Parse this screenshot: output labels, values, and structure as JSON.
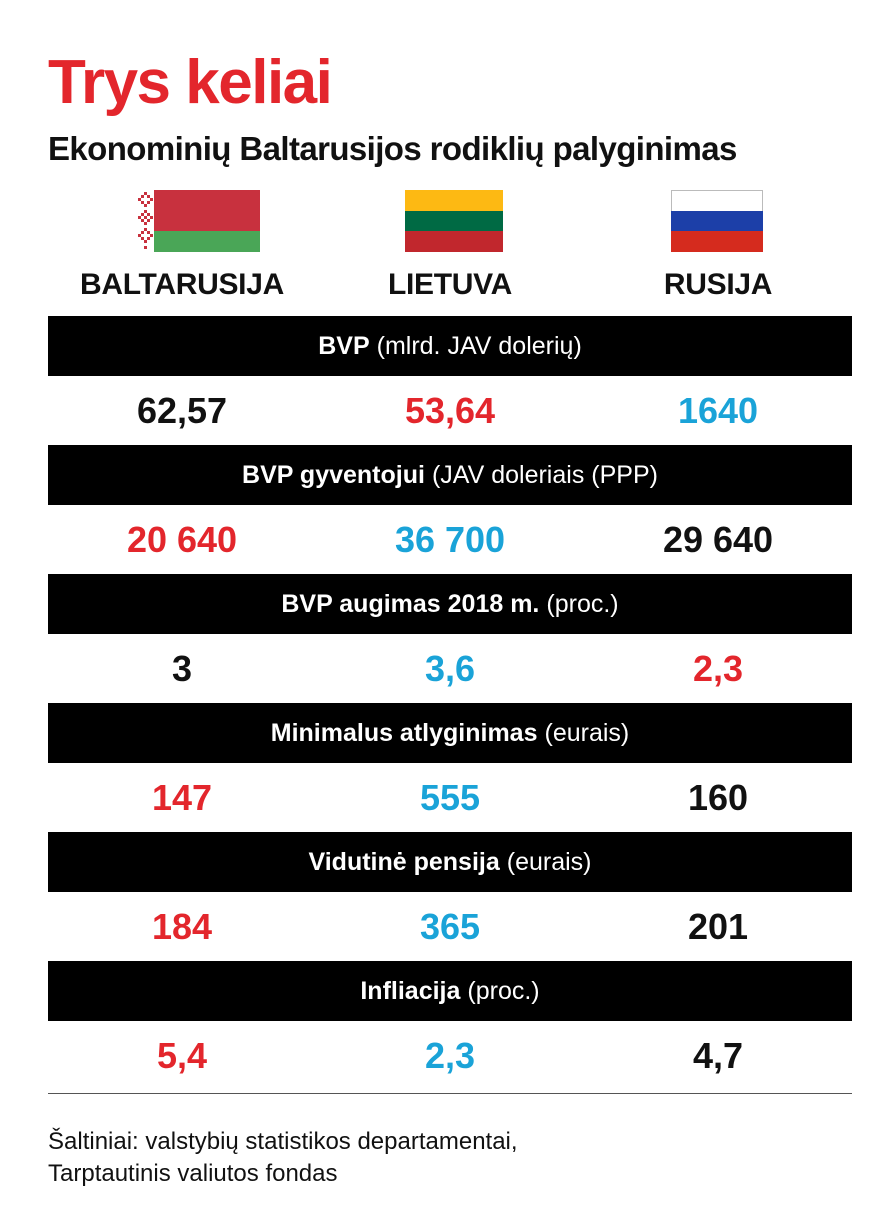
{
  "header": {
    "title": "Trys keliai",
    "subtitle": "Ekonominių Baltarusijos rodiklių palyginimas"
  },
  "colors": {
    "accent_red": "#e3262c",
    "accent_blue": "#1aa3d8",
    "text_black": "#111111",
    "bar_black": "#000000"
  },
  "countries": [
    {
      "name": "BALTARUSIJA",
      "flag_icon": "belarus-flag-icon"
    },
    {
      "name": "LIETUVA",
      "flag_icon": "lithuania-flag-icon"
    },
    {
      "name": "RUSIJA",
      "flag_icon": "russia-flag-icon"
    }
  ],
  "indicators": [
    {
      "label_bold": "BVP",
      "label_normal": "(mlrd. JAV dolerių)",
      "values": [
        {
          "text": "62,57",
          "color": "black"
        },
        {
          "text": "53,64",
          "color": "red"
        },
        {
          "text": "1640",
          "color": "blue"
        }
      ]
    },
    {
      "label_bold": "BVP gyventojui",
      "label_normal": "(JAV doleriais (PPP)",
      "values": [
        {
          "text": "20 640",
          "color": "red"
        },
        {
          "text": "36 700",
          "color": "blue"
        },
        {
          "text": "29 640",
          "color": "black"
        }
      ]
    },
    {
      "label_bold": "BVP augimas 2018 m.",
      "label_normal": "(proc.)",
      "values": [
        {
          "text": "3",
          "color": "black"
        },
        {
          "text": "3,6",
          "color": "blue"
        },
        {
          "text": "2,3",
          "color": "red"
        }
      ]
    },
    {
      "label_bold": "Minimalus atlyginimas",
      "label_normal": "(eurais)",
      "values": [
        {
          "text": "147",
          "color": "red"
        },
        {
          "text": "555",
          "color": "blue"
        },
        {
          "text": "160",
          "color": "black"
        }
      ]
    },
    {
      "label_bold": "Vidutinė pensija",
      "label_normal": "(eurais)",
      "values": [
        {
          "text": "184",
          "color": "red"
        },
        {
          "text": "365",
          "color": "blue"
        },
        {
          "text": "201",
          "color": "black"
        }
      ]
    },
    {
      "label_bold": "Infliacija",
      "label_normal": "(proc.)",
      "values": [
        {
          "text": "5,4",
          "color": "red"
        },
        {
          "text": "2,3",
          "color": "blue"
        },
        {
          "text": "4,7",
          "color": "black"
        }
      ]
    }
  ],
  "source": {
    "line1": "Šaltiniai: valstybių statistikos departamentai,",
    "line2": "Tarptautinis valiutos fondas"
  }
}
